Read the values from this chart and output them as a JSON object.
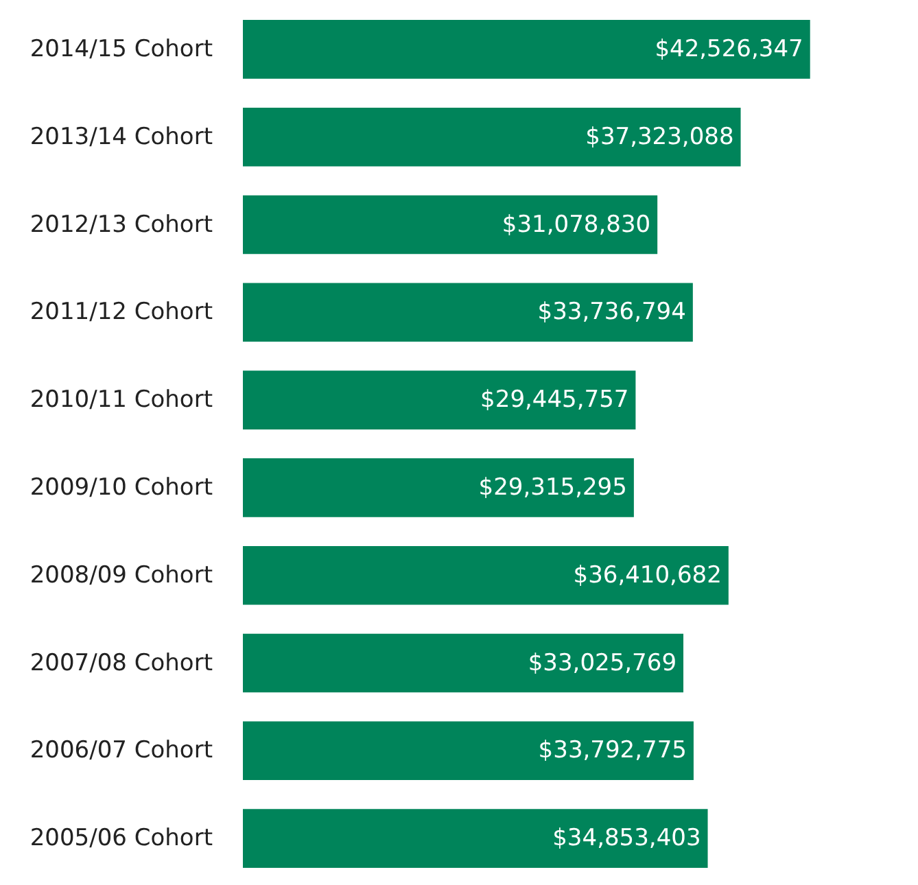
{
  "chart_data": {
    "type": "bar",
    "orientation": "horizontal",
    "categories": [
      "2014/15 Cohort",
      "2013/14 Cohort",
      "2012/13 Cohort",
      "2011/12 Cohort",
      "2010/11 Cohort",
      "2009/10 Cohort",
      "2008/09 Cohort",
      "2007/08 Cohort",
      "2006/07 Cohort",
      "2005/06 Cohort"
    ],
    "values": [
      42526347,
      37323088,
      31078830,
      33736794,
      29445757,
      29315295,
      36410682,
      33025769,
      33792775,
      34853403
    ],
    "value_labels": [
      "$42,526,347",
      "$37,323,088",
      "$31,078,830",
      "$33,736,794",
      "$29,445,757",
      "$29,315,295",
      "$36,410,682",
      "$33,025,769",
      "$33,792,775",
      "$34,853,403"
    ],
    "color": "#00845a"
  }
}
